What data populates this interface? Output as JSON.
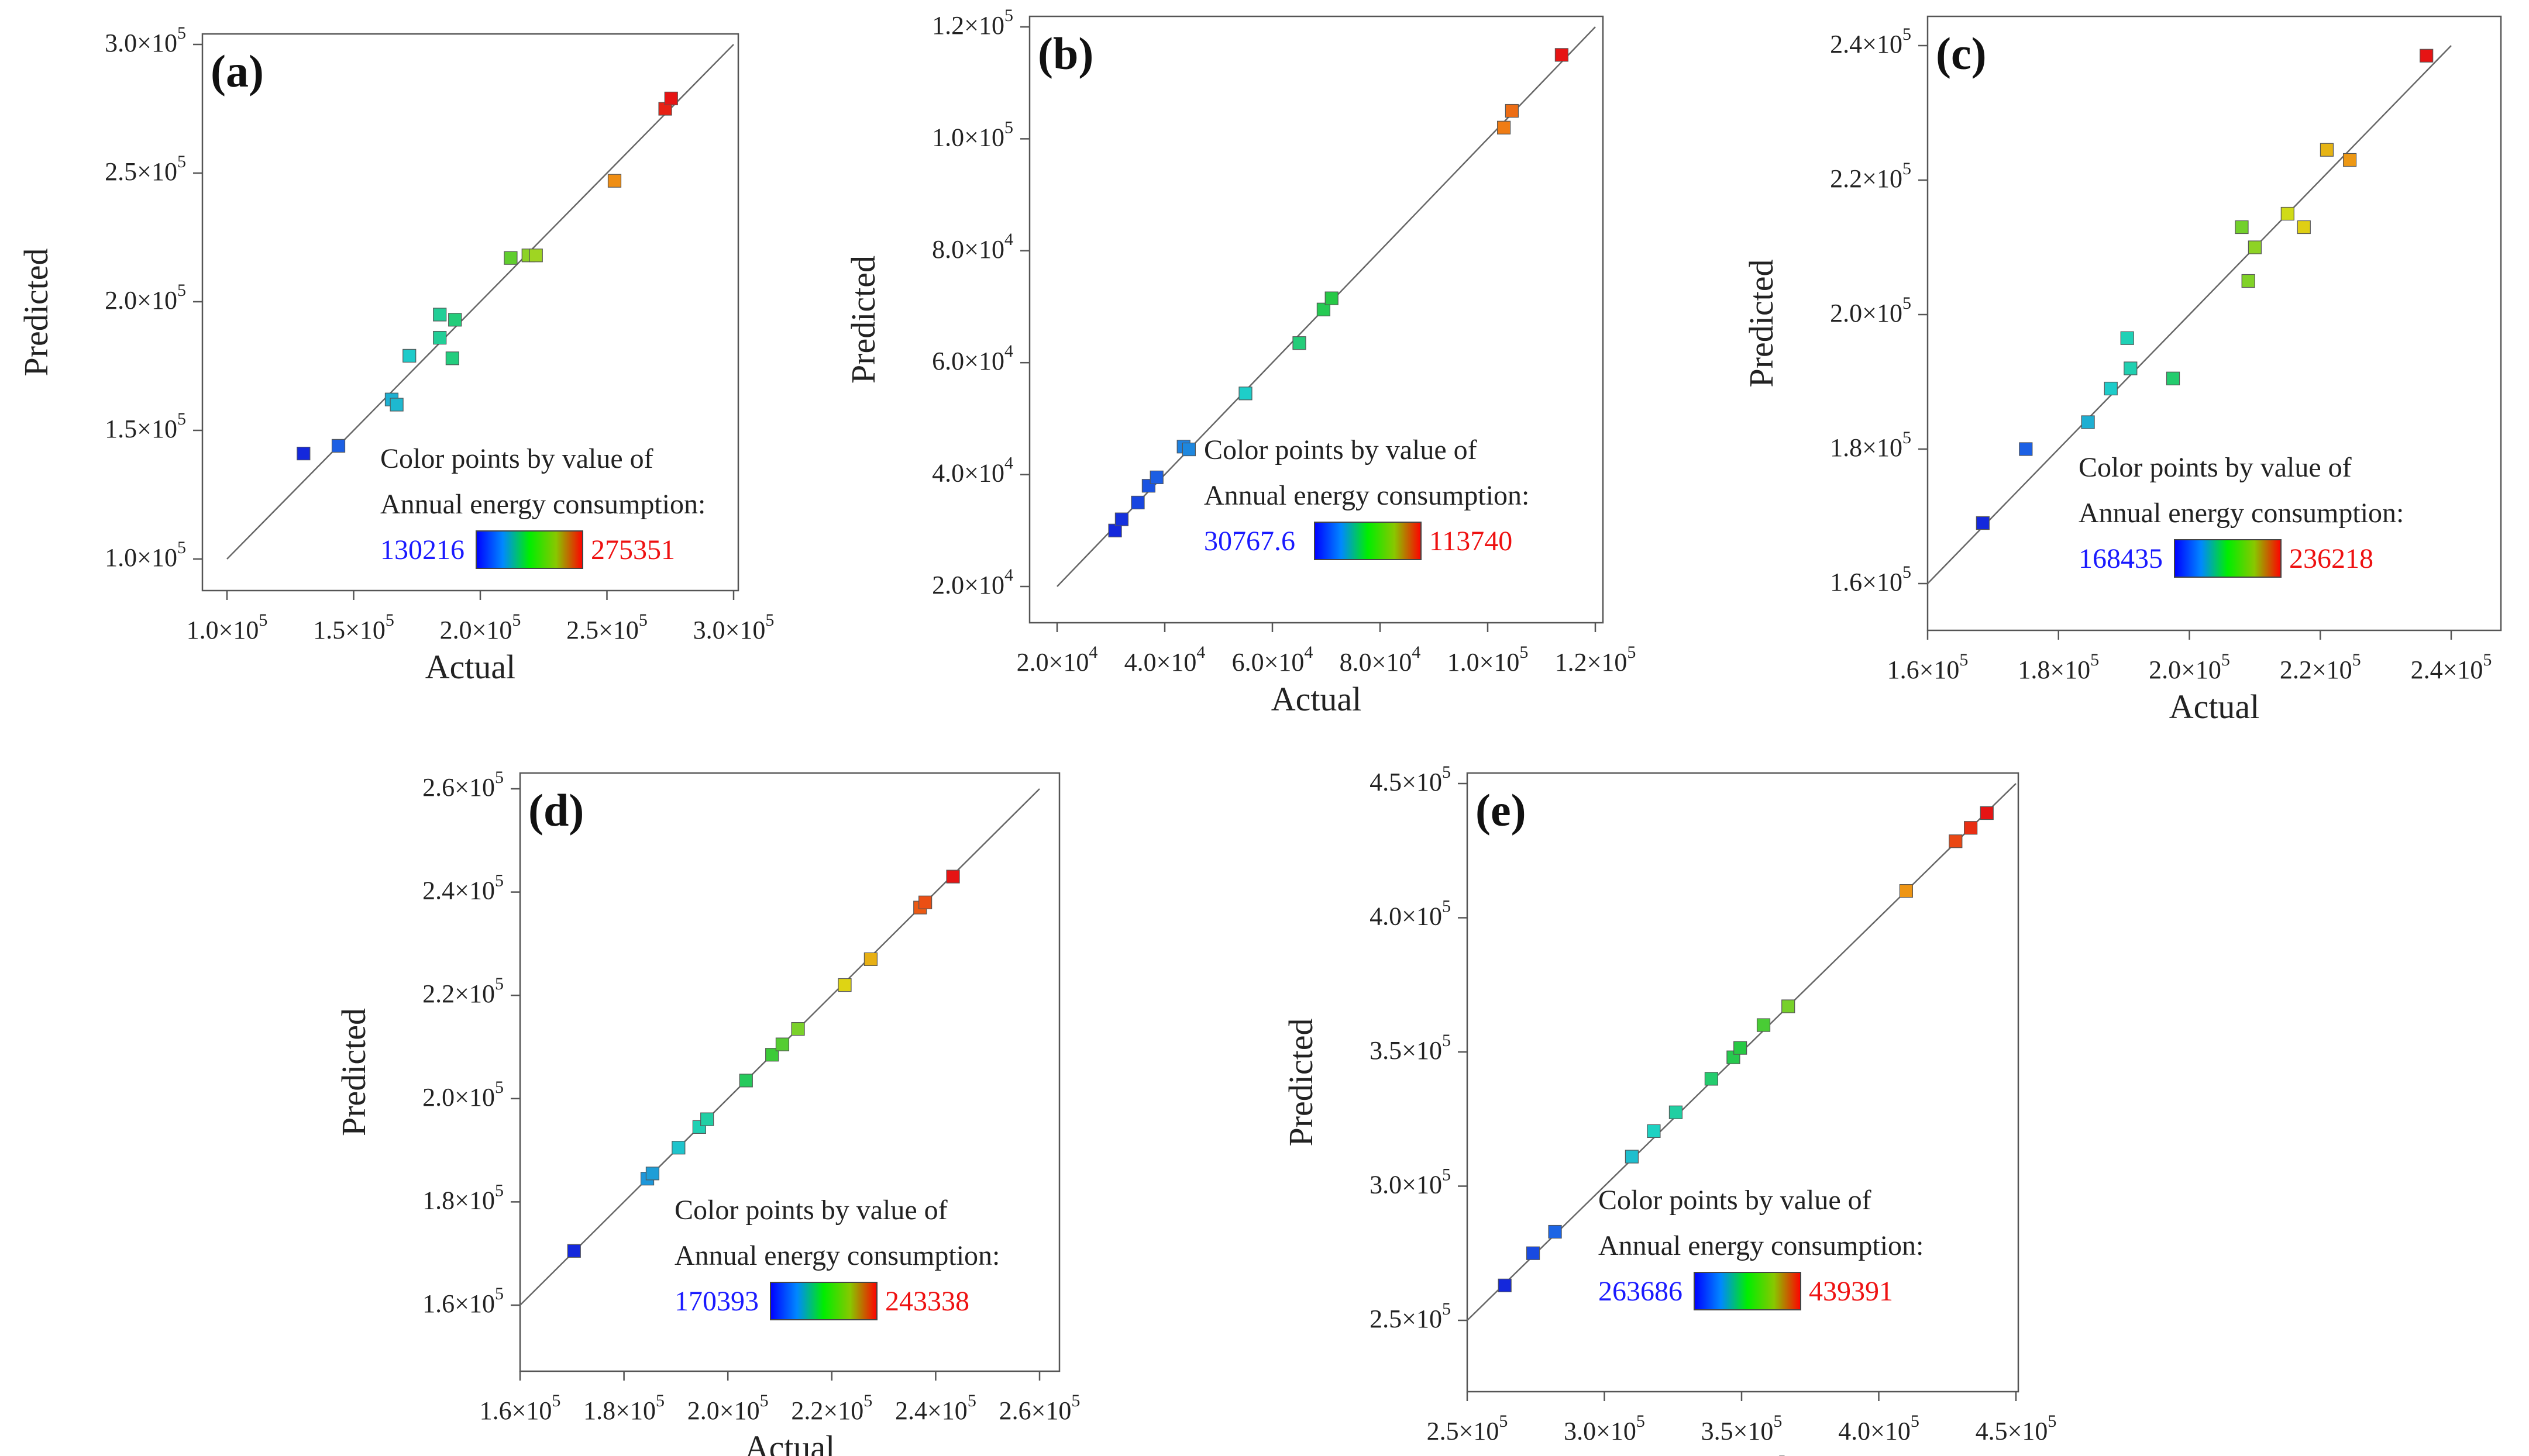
{
  "figure": {
    "panels": [
      "a",
      "b",
      "c",
      "d",
      "e"
    ]
  },
  "chart_data": [
    {
      "type": "scatter",
      "panel_label": "(a)",
      "xlabel": "Actual",
      "ylabel": "Predicted",
      "xlim": [
        100000,
        300000
      ],
      "ylim": [
        100000,
        300000
      ],
      "x_ticks": [
        100000,
        150000,
        200000,
        250000,
        300000
      ],
      "y_ticks": [
        100000,
        150000,
        200000,
        250000,
        300000
      ],
      "x_tick_labels": [
        {
          "m": "1.0×10",
          "e": "5"
        },
        {
          "m": "1.5×10",
          "e": "5"
        },
        {
          "m": "2.0×10",
          "e": "5"
        },
        {
          "m": "2.5×10",
          "e": "5"
        },
        {
          "m": "3.0×10",
          "e": "5"
        }
      ],
      "y_tick_labels": [
        {
          "m": "1.0×10",
          "e": "5"
        },
        {
          "m": "1.5×10",
          "e": "5"
        },
        {
          "m": "2.0×10",
          "e": "5"
        },
        {
          "m": "2.5×10",
          "e": "5"
        },
        {
          "m": "3.0×10",
          "e": "5"
        }
      ],
      "legend": {
        "line1": "Color points by value of",
        "line2": "Annual energy consumption:",
        "min_label": "130216",
        "max_label": "275351",
        "min": 130216,
        "max": 275351
      },
      "points": [
        {
          "x": 130216,
          "y": 141000
        },
        {
          "x": 144000,
          "y": 144000
        },
        {
          "x": 165000,
          "y": 162000
        },
        {
          "x": 167000,
          "y": 160000
        },
        {
          "x": 172000,
          "y": 179000
        },
        {
          "x": 184000,
          "y": 186000
        },
        {
          "x": 184000,
          "y": 195000
        },
        {
          "x": 189000,
          "y": 178000
        },
        {
          "x": 190000,
          "y": 193000
        },
        {
          "x": 212000,
          "y": 217000
        },
        {
          "x": 219000,
          "y": 218000
        },
        {
          "x": 222000,
          "y": 218000
        },
        {
          "x": 253000,
          "y": 247000
        },
        {
          "x": 273000,
          "y": 275000
        },
        {
          "x": 275351,
          "y": 279000
        }
      ]
    },
    {
      "type": "scatter",
      "panel_label": "(b)",
      "xlabel": "Actual",
      "ylabel": "Predicted",
      "xlim": [
        20000,
        120000
      ],
      "ylim": [
        20000,
        120000
      ],
      "x_ticks": [
        20000,
        40000,
        60000,
        80000,
        100000,
        120000
      ],
      "y_ticks": [
        20000,
        40000,
        60000,
        80000,
        100000,
        120000
      ],
      "x_tick_labels": [
        {
          "m": "2.0×10",
          "e": "4"
        },
        {
          "m": "4.0×10",
          "e": "4"
        },
        {
          "m": "6.0×10",
          "e": "4"
        },
        {
          "m": "8.0×10",
          "e": "4"
        },
        {
          "m": "1.0×10",
          "e": "5"
        },
        {
          "m": "1.2×10",
          "e": "5"
        }
      ],
      "y_tick_labels": [
        {
          "m": "2.0×10",
          "e": "4"
        },
        {
          "m": "4.0×10",
          "e": "4"
        },
        {
          "m": "6.0×10",
          "e": "4"
        },
        {
          "m": "8.0×10",
          "e": "4"
        },
        {
          "m": "1.0×10",
          "e": "5"
        },
        {
          "m": "1.2×10",
          "e": "5"
        }
      ],
      "legend": {
        "line1": "Color points by value of",
        "line2": "Annual energy consumption:",
        "min_label": "30767.6",
        "max_label": "113740",
        "min": 30767.6,
        "max": 113740
      },
      "points": [
        {
          "x": 30767.6,
          "y": 30000
        },
        {
          "x": 32000,
          "y": 32000
        },
        {
          "x": 35000,
          "y": 35000
        },
        {
          "x": 37000,
          "y": 38000
        },
        {
          "x": 38500,
          "y": 39500
        },
        {
          "x": 43500,
          "y": 45000
        },
        {
          "x": 44500,
          "y": 44500
        },
        {
          "x": 55000,
          "y": 54500
        },
        {
          "x": 65000,
          "y": 63500
        },
        {
          "x": 69500,
          "y": 69500
        },
        {
          "x": 71000,
          "y": 71500
        },
        {
          "x": 103000,
          "y": 102000
        },
        {
          "x": 104500,
          "y": 105000
        },
        {
          "x": 113740,
          "y": 115000
        }
      ]
    },
    {
      "type": "scatter",
      "panel_label": "(c)",
      "xlabel": "Actual",
      "ylabel": "Predicted",
      "xlim": [
        160000,
        240000
      ],
      "ylim": [
        160000,
        240000
      ],
      "x_ticks": [
        160000,
        180000,
        200000,
        220000,
        240000
      ],
      "y_ticks": [
        160000,
        180000,
        200000,
        220000,
        240000
      ],
      "x_tick_labels": [
        {
          "m": "1.6×10",
          "e": "5"
        },
        {
          "m": "1.8×10",
          "e": "5"
        },
        {
          "m": "2.0×10",
          "e": "5"
        },
        {
          "m": "2.2×10",
          "e": "5"
        },
        {
          "m": "2.4×10",
          "e": "5"
        }
      ],
      "y_tick_labels": [
        {
          "m": "1.6×10",
          "e": "5"
        },
        {
          "m": "1.8×10",
          "e": "5"
        },
        {
          "m": "2.0×10",
          "e": "5"
        },
        {
          "m": "2.2×10",
          "e": "5"
        },
        {
          "m": "2.4×10",
          "e": "5"
        }
      ],
      "legend": {
        "line1": "Color points by value of",
        "line2": "Annual energy consumption:",
        "min_label": "168435",
        "max_label": "236218",
        "min": 168435,
        "max": 236218
      },
      "points": [
        {
          "x": 168435,
          "y": 169000
        },
        {
          "x": 175000,
          "y": 180000
        },
        {
          "x": 184500,
          "y": 184000
        },
        {
          "x": 188000,
          "y": 189000
        },
        {
          "x": 190500,
          "y": 196500
        },
        {
          "x": 191000,
          "y": 192000
        },
        {
          "x": 197500,
          "y": 190500
        },
        {
          "x": 208000,
          "y": 213000
        },
        {
          "x": 209000,
          "y": 205000
        },
        {
          "x": 210000,
          "y": 210000
        },
        {
          "x": 215000,
          "y": 215000
        },
        {
          "x": 217500,
          "y": 213000
        },
        {
          "x": 221000,
          "y": 224500
        },
        {
          "x": 224500,
          "y": 223000
        },
        {
          "x": 236218,
          "y": 238500
        }
      ]
    },
    {
      "type": "scatter",
      "panel_label": "(d)",
      "xlabel": "Actual",
      "ylabel": "Predicted",
      "xlim": [
        160000,
        260000
      ],
      "ylim": [
        160000,
        260000
      ],
      "x_ticks": [
        160000,
        180000,
        200000,
        220000,
        240000,
        260000
      ],
      "y_ticks": [
        160000,
        180000,
        200000,
        220000,
        240000,
        260000
      ],
      "x_tick_labels": [
        {
          "m": "1.6×10",
          "e": "5"
        },
        {
          "m": "1.8×10",
          "e": "5"
        },
        {
          "m": "2.0×10",
          "e": "5"
        },
        {
          "m": "2.2×10",
          "e": "5"
        },
        {
          "m": "2.4×10",
          "e": "5"
        },
        {
          "m": "2.6×10",
          "e": "5"
        }
      ],
      "y_tick_labels": [
        {
          "m": "1.6×10",
          "e": "5"
        },
        {
          "m": "1.8×10",
          "e": "5"
        },
        {
          "m": "2.0×10",
          "e": "5"
        },
        {
          "m": "2.2×10",
          "e": "5"
        },
        {
          "m": "2.4×10",
          "e": "5"
        },
        {
          "m": "2.6×10",
          "e": "5"
        }
      ],
      "legend": {
        "line1": "Color points by value of",
        "line2": "Annual energy consumption:",
        "min_label": "170393",
        "max_label": "243338",
        "min": 170393,
        "max": 243338
      },
      "points": [
        {
          "x": 170393,
          "y": 170500
        },
        {
          "x": 184500,
          "y": 184500
        },
        {
          "x": 185500,
          "y": 185500
        },
        {
          "x": 190500,
          "y": 190500
        },
        {
          "x": 194500,
          "y": 194500
        },
        {
          "x": 196000,
          "y": 196000
        },
        {
          "x": 203500,
          "y": 203500
        },
        {
          "x": 208500,
          "y": 208500
        },
        {
          "x": 210500,
          "y": 210500
        },
        {
          "x": 213500,
          "y": 213500
        },
        {
          "x": 222500,
          "y": 222000
        },
        {
          "x": 227500,
          "y": 227000
        },
        {
          "x": 237000,
          "y": 237000
        },
        {
          "x": 238000,
          "y": 238000
        },
        {
          "x": 243338,
          "y": 243000
        }
      ]
    },
    {
      "type": "scatter",
      "panel_label": "(e)",
      "xlabel": "Actual",
      "ylabel": "Predicted",
      "xlim": [
        250000,
        450000
      ],
      "ylim": [
        250000,
        450000
      ],
      "x_ticks": [
        250000,
        300000,
        350000,
        400000,
        450000
      ],
      "y_ticks": [
        250000,
        300000,
        350000,
        400000,
        450000
      ],
      "x_tick_labels": [
        {
          "m": "2.5×10",
          "e": "5"
        },
        {
          "m": "3.0×10",
          "e": "5"
        },
        {
          "m": "3.5×10",
          "e": "5"
        },
        {
          "m": "4.0×10",
          "e": "5"
        },
        {
          "m": "4.5×10",
          "e": "5"
        }
      ],
      "y_tick_labels": [
        {
          "m": "2.5×10",
          "e": "5"
        },
        {
          "m": "3.0×10",
          "e": "5"
        },
        {
          "m": "3.5×10",
          "e": "5"
        },
        {
          "m": "4.0×10",
          "e": "5"
        },
        {
          "m": "4.5×10",
          "e": "5"
        }
      ],
      "legend": {
        "line1": "Color points by value of",
        "line2": "Annual energy consumption:",
        "min_label": "263686",
        "max_label": "439391",
        "min": 263686,
        "max": 439391
      },
      "points": [
        {
          "x": 263686,
          "y": 263000
        },
        {
          "x": 274000,
          "y": 275000
        },
        {
          "x": 282000,
          "y": 283000
        },
        {
          "x": 310000,
          "y": 311000
        },
        {
          "x": 318000,
          "y": 320500
        },
        {
          "x": 326000,
          "y": 327500
        },
        {
          "x": 339000,
          "y": 340000
        },
        {
          "x": 347000,
          "y": 348000
        },
        {
          "x": 349500,
          "y": 351500
        },
        {
          "x": 358000,
          "y": 360000
        },
        {
          "x": 367000,
          "y": 367000
        },
        {
          "x": 410000,
          "y": 410000
        },
        {
          "x": 428000,
          "y": 428500
        },
        {
          "x": 433500,
          "y": 433500
        },
        {
          "x": 439391,
          "y": 439000
        }
      ]
    }
  ]
}
